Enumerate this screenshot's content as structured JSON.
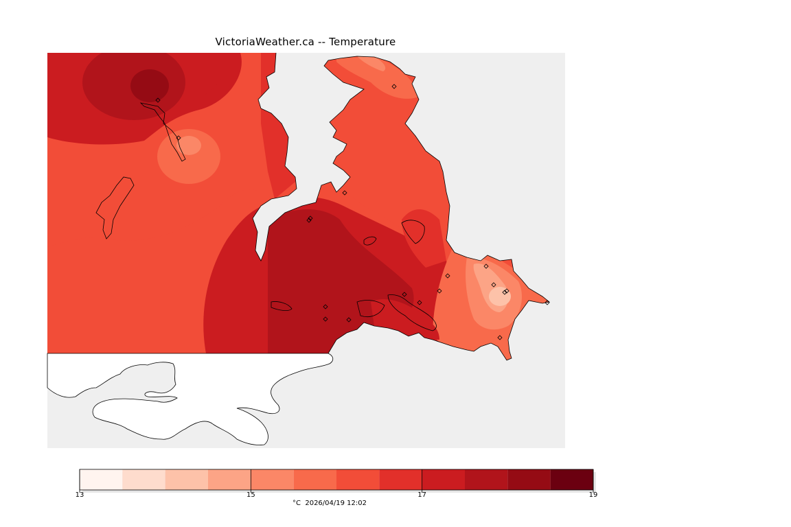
{
  "title": "VictoriaWeather.ca -- Temperature",
  "legend": {
    "min": 13,
    "max": 19,
    "tick_labels": [
      "13",
      "15",
      "17",
      "19"
    ],
    "bins": [
      {
        "from": 13.0,
        "to": 13.5,
        "color": "#fff4ef"
      },
      {
        "from": 13.5,
        "to": 14.0,
        "color": "#fedccd"
      },
      {
        "from": 14.0,
        "to": 14.5,
        "color": "#fdc2a9"
      },
      {
        "from": 14.5,
        "to": 15.0,
        "color": "#fca486"
      },
      {
        "from": 15.0,
        "to": 15.5,
        "color": "#fb8767"
      },
      {
        "from": 15.5,
        "to": 16.0,
        "color": "#f86a4b"
      },
      {
        "from": 16.0,
        "to": 16.5,
        "color": "#f24d38"
      },
      {
        "from": 16.5,
        "to": 17.0,
        "color": "#e2302a"
      },
      {
        "from": 17.0,
        "to": 17.5,
        "color": "#cb1c20"
      },
      {
        "from": 17.5,
        "to": 18.0,
        "color": "#b1141b"
      },
      {
        "from": 18.0,
        "to": 18.5,
        "color": "#950b14"
      },
      {
        "from": 18.5,
        "to": 19.0,
        "color": "#6b0010"
      }
    ]
  },
  "caption": "°C  2026/04/19 12:02",
  "colors": {
    "background_water": "#efefef",
    "outline": "#000000"
  }
}
